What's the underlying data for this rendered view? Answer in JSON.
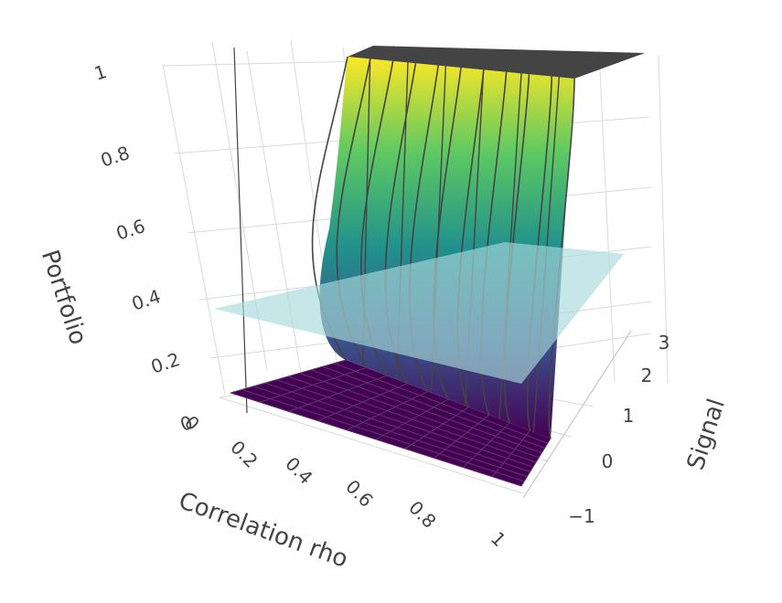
{
  "chart_data": {
    "type": "surface",
    "colorscale": "viridis",
    "colorscale_colors": [
      "#440154",
      "#3b528b",
      "#21918c",
      "#5ec962",
      "#fde725"
    ],
    "plateau_color": "#444444",
    "plane_color": "#a8d8da",
    "contour_color": "#444444",
    "grid": true,
    "axes": {
      "x": {
        "title": "Correlation rho",
        "range": [
          0.05,
          1.0
        ],
        "tick_labels": [
          "0",
          "0.2",
          "0.4",
          "0.6",
          "0.8",
          "1"
        ]
      },
      "y": {
        "title": "Signal",
        "range": [
          -1.5,
          3.2
        ],
        "tick_labels": [
          "−1",
          "0",
          "1",
          "2",
          "3"
        ]
      },
      "z": {
        "title": "Portfolio",
        "range": [
          0,
          1
        ],
        "tick_labels": [
          "0",
          "0.2",
          "0.4",
          "0.6",
          "0.8",
          "1"
        ]
      }
    },
    "reference_plane": {
      "z": 0.35
    },
    "surface_description": "Portfolio rises steeply from 0 to 1 near Signal ≈ 0.8–1.0; at low rho the transition is smooth (sigmoid), at rho → 1 it is a sharp step. Above the transition the surface is flat at 1.",
    "x_samples": [
      0.05,
      0.15,
      0.25,
      0.35,
      0.45,
      0.55,
      0.65,
      0.75,
      0.85,
      0.95,
      1.0
    ],
    "transition_signal": 0.85
  }
}
